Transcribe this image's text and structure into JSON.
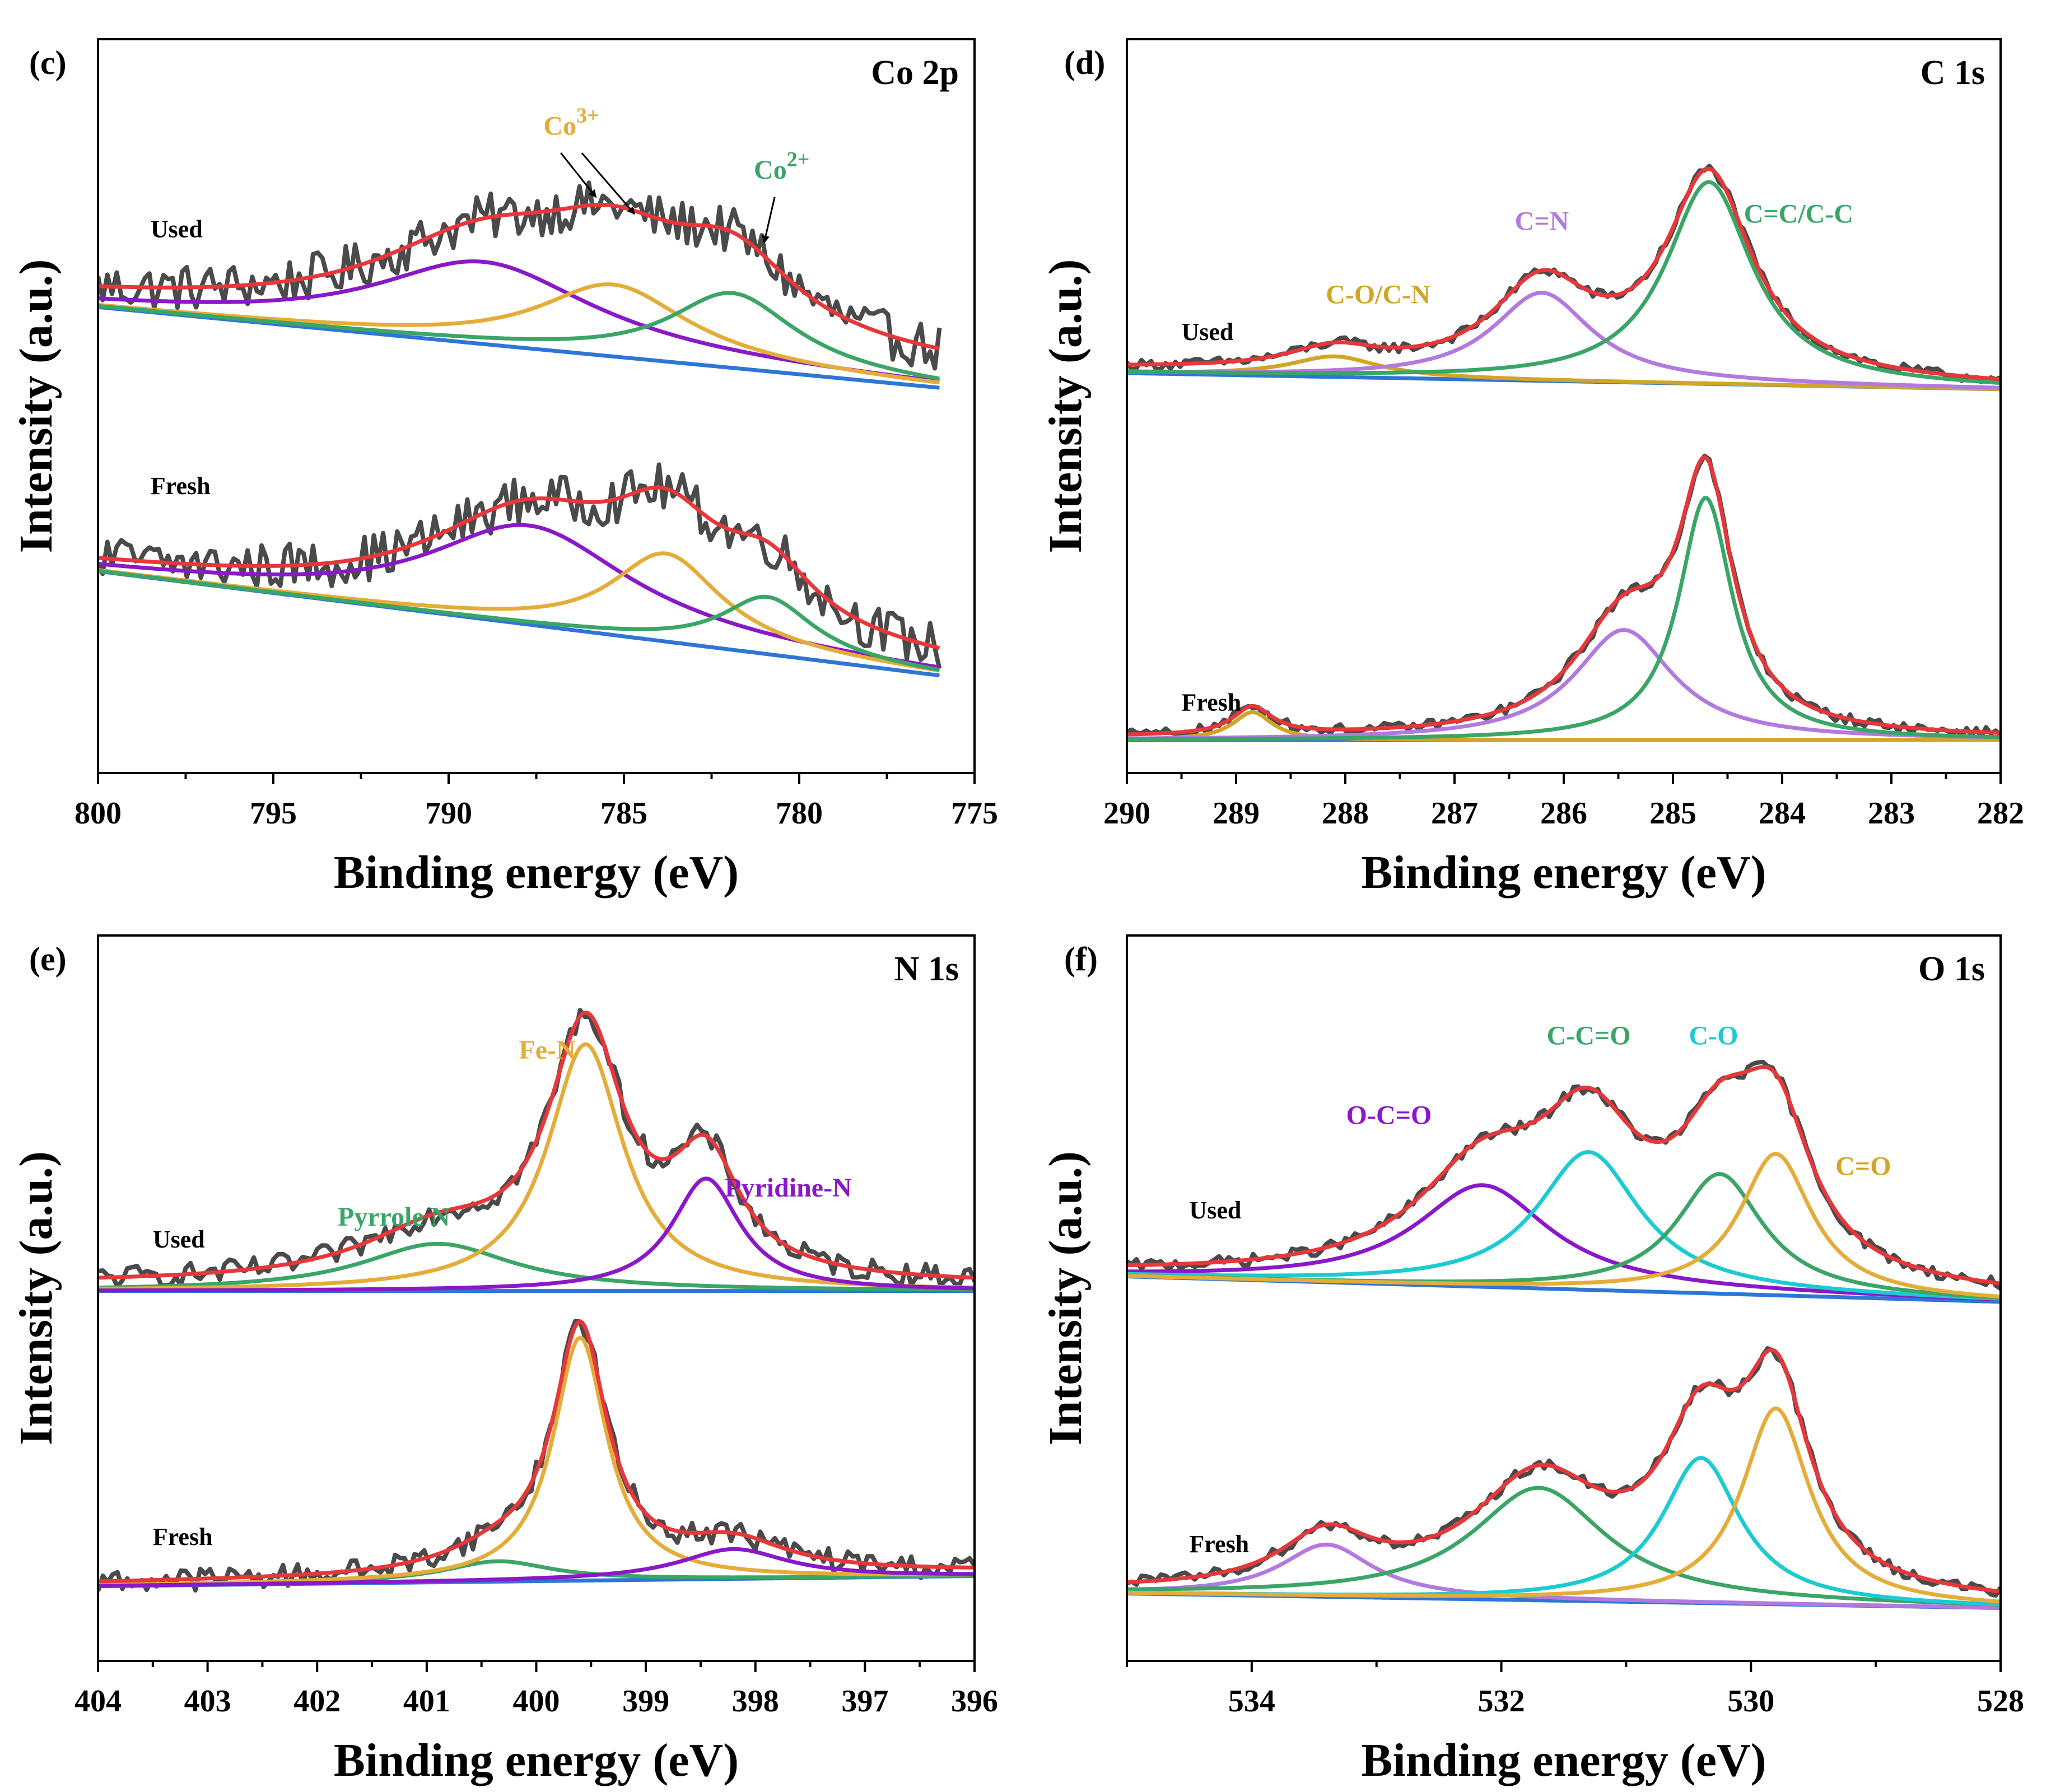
{
  "figure": {
    "ylabel": "Intensity (a.u.)",
    "xlabel": "Binding energy (eV)"
  },
  "colors": {
    "raw": "#4a4a4a",
    "envelope": "#e8373a",
    "baseline": "#2d76d7",
    "purple": "#8a18c9",
    "gold": "#e4ac38",
    "green": "#3aa567",
    "lavender": "#b27ae0",
    "cyan": "#1ccbd1",
    "darkgold": "#d1a526"
  },
  "chart_data": [
    {
      "type": "line",
      "panel": "(c)",
      "title": "Co 2p",
      "xlabel": "Binding energy (eV)",
      "ylabel": "Intensity (a.u.)",
      "xlim": [
        800,
        775
      ],
      "ylim": [
        0,
        100
      ],
      "xticks": [
        "800",
        "795",
        "790",
        "785",
        "780",
        "775"
      ],
      "data_end": 776,
      "noise": 3.2,
      "groups": [
        {
          "label": "Used",
          "base_left": 63.5,
          "base_right": 52.5,
          "offset_left": 1.2,
          "offset_right": 2.5,
          "components": [
            {
              "center": 789,
              "height": 11.2,
              "width": 3.8,
              "color": "purple"
            },
            {
              "center": 785.3,
              "height": 9.8,
              "width": 2.6,
              "color": "gold"
            },
            {
              "center": 781.9,
              "height": 10.2,
              "width": 2.2,
              "color": "green"
            }
          ]
        },
        {
          "label": "Fresh",
          "base_left": 27.5,
          "base_right": 13.3,
          "offset_left": 0.6,
          "offset_right": 1.2,
          "components": [
            {
              "center": 787.7,
              "height": 13.5,
              "width": 3.5,
              "color": "purple"
            },
            {
              "center": 783.8,
              "height": 12,
              "width": 1.9,
              "color": "gold"
            },
            {
              "center": 780.9,
              "height": 7.8,
              "width": 1.6,
              "color": "green"
            }
          ]
        }
      ],
      "annotations": [
        {
          "text": "Co",
          "sup": "3+",
          "color": "gold",
          "x": 786.5,
          "y": 87
        },
        {
          "text": "Co",
          "sup": "2+",
          "color": "green",
          "x": 780.5,
          "y": 81
        }
      ]
    },
    {
      "type": "line",
      "panel": "(d)",
      "title": "C 1s",
      "xlabel": "Binding energy (eV)",
      "ylabel": "Intensity (a.u.)",
      "xlim": [
        290,
        282
      ],
      "ylim": [
        0,
        100
      ],
      "xticks": [
        "290",
        "289",
        "288",
        "287",
        "286",
        "285",
        "284",
        "283",
        "282"
      ],
      "data_end": 282,
      "noise": 0.7,
      "groups": [
        {
          "label": "Used",
          "base_left": 54.5,
          "base_right": 52.3,
          "offset_left": 0.5,
          "offset_right": 0.3,
          "components": [
            {
              "center": 288.1,
              "height": 2.8,
              "width": 0.5,
              "color": "darkgold"
            },
            {
              "center": 286.2,
              "height": 12,
              "width": 0.55,
              "color": "lavender"
            },
            {
              "center": 284.67,
              "height": 27.5,
              "width": 0.48,
              "color": "green"
            }
          ]
        },
        {
          "label": "Fresh",
          "base_left": 4.5,
          "base_right": 4.5,
          "offset_left": 0.3,
          "offset_right": 0.2,
          "components": [
            {
              "center": 288.85,
              "height": 3.8,
              "width": 0.22,
              "color": "darkgold"
            },
            {
              "center": 285.45,
              "height": 15,
              "width": 0.55,
              "color": "lavender"
            },
            {
              "center": 284.7,
              "height": 33,
              "width": 0.3,
              "color": "green"
            }
          ]
        }
      ],
      "annotations": [
        {
          "text": "C=N",
          "color": "lavender",
          "x": 286.2,
          "y": 74
        },
        {
          "text": "C=C/C-C",
          "color": "green",
          "x": 283.85,
          "y": 75
        },
        {
          "text": "C-O/C-N",
          "color": "darkgold",
          "x": 287.7,
          "y": 64
        }
      ]
    },
    {
      "type": "line",
      "panel": "(e)",
      "title": "N 1s",
      "xlabel": "Binding energy (eV)",
      "ylabel": "Intensity (a.u.)",
      "xlim": [
        404,
        396
      ],
      "ylim": [
        0,
        100
      ],
      "xticks": [
        "404",
        "403",
        "402",
        "401",
        "400",
        "399",
        "398",
        "397",
        "396"
      ],
      "data_end": 396,
      "noise": 1.6,
      "groups": [
        {
          "label": "Used",
          "base_left": 51,
          "base_right": 51,
          "offset_left": 1,
          "offset_right": 0.8,
          "components": [
            {
              "center": 400.9,
              "height": 6.5,
              "width": 0.85,
              "color": "green"
            },
            {
              "center": 399.55,
              "height": 34,
              "width": 0.42,
              "color": "gold"
            },
            {
              "center": 398.45,
              "height": 15.5,
              "width": 0.38,
              "color": "purple"
            }
          ]
        },
        {
          "label": "Fresh",
          "base_left": 10.3,
          "base_right": 11.7,
          "offset_left": 0.4,
          "offset_right": 0.6,
          "components": [
            {
              "center": 400.35,
              "height": 2.8,
              "width": 0.6,
              "color": "green"
            },
            {
              "center": 399.6,
              "height": 33.5,
              "width": 0.3,
              "color": "gold"
            },
            {
              "center": 398.2,
              "height": 4.1,
              "width": 0.6,
              "color": "purple"
            }
          ]
        }
      ],
      "annotations": [
        {
          "text": "Fe-N",
          "color": "gold",
          "x": 399.9,
          "y": 83
        },
        {
          "text": "Pyrrole N",
          "color": "green",
          "x": 401.3,
          "y": 60
        },
        {
          "text": "Pyridine-N",
          "color": "purple",
          "x": 397.7,
          "y": 64
        }
      ]
    },
    {
      "type": "line",
      "panel": "(f)",
      "title": "O 1s",
      "xlabel": "Binding energy (eV)",
      "ylabel": "Intensity (a.u.)",
      "xlim": [
        535,
        528
      ],
      "ylim": [
        0,
        100
      ],
      "xticks": [
        "534",
        "532",
        "530",
        "528"
      ],
      "data_end": 528,
      "noise": 0.8,
      "groups": [
        {
          "label": "Used",
          "base_left": 53,
          "base_right": 49.5,
          "offset_left": 0.3,
          "offset_right": 0.5,
          "components": [
            {
              "center": 532.15,
              "height": 14,
              "width": 0.65,
              "color": "purple"
            },
            {
              "center": 531.3,
              "height": 19,
              "width": 0.5,
              "color": "cyan"
            },
            {
              "center": 530.25,
              "height": 16.5,
              "width": 0.42,
              "color": "green"
            },
            {
              "center": 529.8,
              "height": 19.5,
              "width": 0.35,
              "color": "gold"
            }
          ]
        },
        {
          "label": "Fresh",
          "base_left": 9.3,
          "base_right": 7.3,
          "offset_left": 0.2,
          "offset_right": 0.4,
          "components": [
            {
              "center": 533.4,
              "height": 7.2,
              "width": 0.45,
              "color": "lavender"
            },
            {
              "center": 531.7,
              "height": 15.5,
              "width": 0.65,
              "color": "green"
            },
            {
              "center": 530.4,
              "height": 20,
              "width": 0.38,
              "color": "cyan"
            },
            {
              "center": 529.8,
              "height": 27,
              "width": 0.33,
              "color": "gold"
            }
          ]
        }
      ],
      "annotations": [
        {
          "text": "C-C=O",
          "color": "green",
          "x": 531.3,
          "y": 85
        },
        {
          "text": "C-O",
          "color": "cyan",
          "x": 530.3,
          "y": 85
        },
        {
          "text": "O-C=O",
          "color": "purple",
          "x": 532.9,
          "y": 74
        },
        {
          "text": "C=O",
          "color": "darkgold",
          "x": 529.1,
          "y": 67
        }
      ]
    }
  ]
}
